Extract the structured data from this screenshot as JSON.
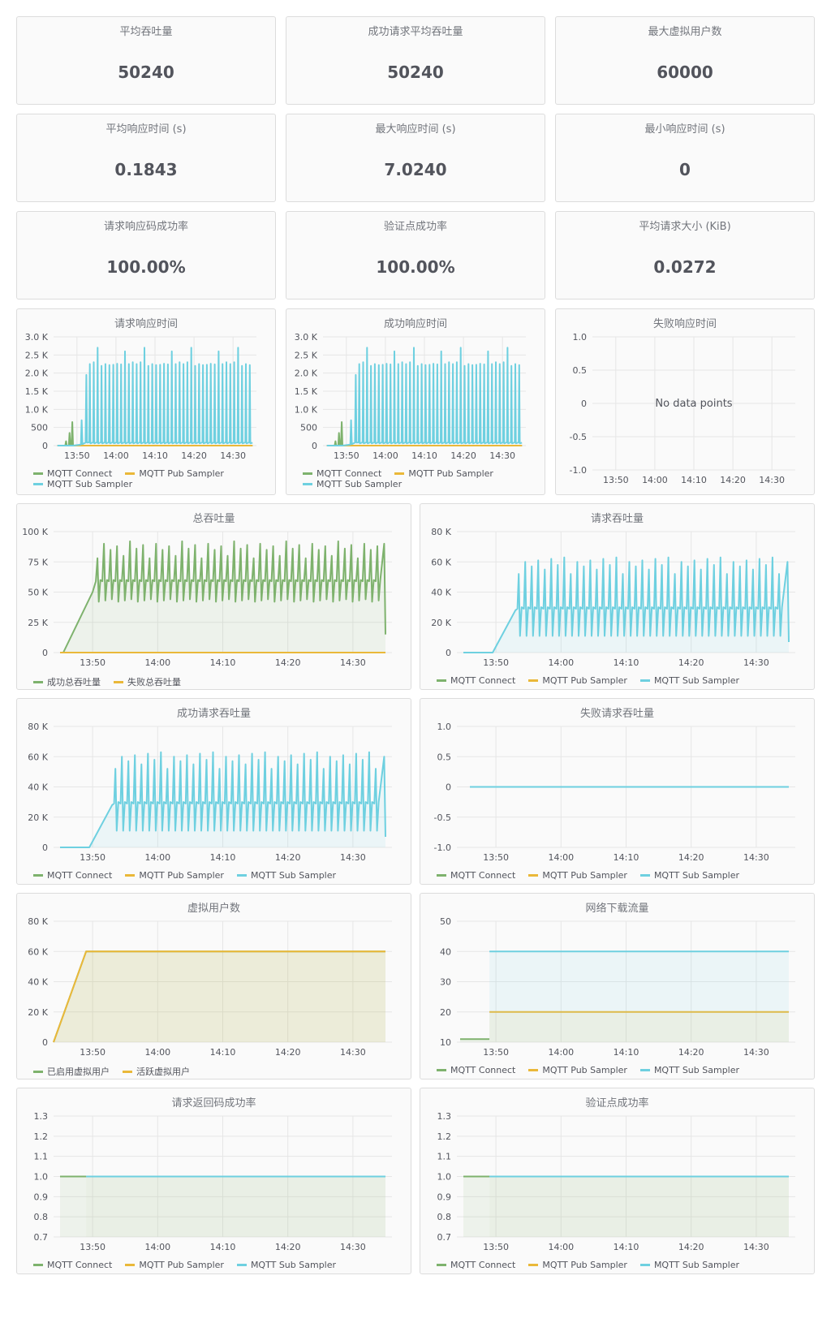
{
  "stats": [
    {
      "title": "平均吞吐量",
      "value": "50240"
    },
    {
      "title": "成功请求平均吞吐量",
      "value": "50240"
    },
    {
      "title": "最大虚拟用户数",
      "value": "60000"
    },
    {
      "title": "平均响应时间 (s)",
      "value": "0.1843"
    },
    {
      "title": "最大响应时间 (s)",
      "value": "7.0240"
    },
    {
      "title": "最小响应时间 (s)",
      "value": "0"
    },
    {
      "title": "请求响应码成功率",
      "value": "100.00%"
    },
    {
      "title": "验证点成功率",
      "value": "100.00%"
    },
    {
      "title": "平均请求大小 (KiB)",
      "value": "0.0272"
    }
  ],
  "colors": {
    "green": "#7eb26d",
    "yellow": "#eab839",
    "cyan": "#6ed0e0"
  },
  "no_data_text": "No data points",
  "chart_data": [
    {
      "id": "resp",
      "type": "line",
      "title": "请求响应时间",
      "y_ticks": [
        "3.0 K",
        "2.5 K",
        "2.0 K",
        "1.5 K",
        "1.0 K",
        "500",
        "0"
      ],
      "ylim": [
        0,
        3000
      ],
      "x_ticks": [
        "13:50",
        "14:00",
        "14:10",
        "14:20",
        "14:30"
      ],
      "series": [
        {
          "name": "MQTT Connect",
          "color": "#7eb26d",
          "shape": "connect_spikes"
        },
        {
          "name": "MQTT Pub Sampler",
          "color": "#eab839",
          "shape": "flat_zero"
        },
        {
          "name": "MQTT Sub Sampler",
          "color": "#6ed0e0",
          "shape": "spikes_2200"
        }
      ]
    },
    {
      "id": "success_resp",
      "type": "line",
      "title": "成功响应时间",
      "y_ticks": [
        "3.0 K",
        "2.5 K",
        "2.0 K",
        "1.5 K",
        "1.0 K",
        "500",
        "0"
      ],
      "ylim": [
        0,
        3000
      ],
      "x_ticks": [
        "13:50",
        "14:00",
        "14:10",
        "14:20",
        "14:30"
      ],
      "series": [
        {
          "name": "MQTT Connect",
          "color": "#7eb26d",
          "shape": "connect_spikes"
        },
        {
          "name": "MQTT Pub Sampler",
          "color": "#eab839",
          "shape": "flat_zero"
        },
        {
          "name": "MQTT Sub Sampler",
          "color": "#6ed0e0",
          "shape": "spikes_2200"
        }
      ]
    },
    {
      "id": "fail_resp",
      "type": "line",
      "title": "失败响应时间",
      "y_ticks": [
        "1.0",
        "0.5",
        "0",
        "-0.5",
        "-1.0"
      ],
      "ylim": [
        -1,
        1
      ],
      "x_ticks": [
        "13:50",
        "14:00",
        "14:10",
        "14:20",
        "14:30"
      ],
      "no_data": true,
      "series": []
    },
    {
      "id": "total_tp",
      "type": "area",
      "title": "总吞吐量",
      "y_ticks": [
        "100 K",
        "75 K",
        "50 K",
        "25 K",
        "0"
      ],
      "ylim": [
        0,
        100000
      ],
      "x_ticks": [
        "13:50",
        "14:00",
        "14:10",
        "14:20",
        "14:30"
      ],
      "series": [
        {
          "name": "成功总吞吐量",
          "color": "#7eb26d",
          "shape": "tp_60k"
        },
        {
          "name": "失败总吞吐量",
          "color": "#eab839",
          "shape": "flat_zero"
        }
      ]
    },
    {
      "id": "req_tp",
      "type": "area",
      "title": "请求吞吐量",
      "y_ticks": [
        "80 K",
        "60 K",
        "40 K",
        "20 K",
        "0"
      ],
      "ylim": [
        0,
        80000
      ],
      "x_ticks": [
        "13:50",
        "14:00",
        "14:10",
        "14:20",
        "14:30"
      ],
      "series": [
        {
          "name": "MQTT Connect",
          "color": "#7eb26d",
          "shape": "flat_zero_short"
        },
        {
          "name": "MQTT Pub Sampler",
          "color": "#eab839",
          "shape": "flat_zero_short"
        },
        {
          "name": "MQTT Sub Sampler",
          "color": "#6ed0e0",
          "shape": "tp_30k"
        }
      ]
    },
    {
      "id": "success_req_tp",
      "type": "area",
      "title": "成功请求吞吐量",
      "y_ticks": [
        "80 K",
        "60 K",
        "40 K",
        "20 K",
        "0"
      ],
      "ylim": [
        0,
        80000
      ],
      "x_ticks": [
        "13:50",
        "14:00",
        "14:10",
        "14:20",
        "14:30"
      ],
      "series": [
        {
          "name": "MQTT Connect",
          "color": "#7eb26d",
          "shape": "flat_zero_short"
        },
        {
          "name": "MQTT Pub Sampler",
          "color": "#eab839",
          "shape": "flat_zero_short"
        },
        {
          "name": "MQTT Sub Sampler",
          "color": "#6ed0e0",
          "shape": "tp_30k"
        }
      ]
    },
    {
      "id": "fail_req_tp",
      "type": "line",
      "title": "失败请求吞吐量",
      "y_ticks": [
        "1.0",
        "0.5",
        "0",
        "-0.5",
        "-1.0"
      ],
      "ylim": [
        -1,
        1
      ],
      "x_ticks": [
        "13:50",
        "14:00",
        "14:10",
        "14:20",
        "14:30"
      ],
      "series": [
        {
          "name": "MQTT Connect",
          "color": "#7eb26d",
          "shape": "zero_line_short"
        },
        {
          "name": "MQTT Pub Sampler",
          "color": "#eab839",
          "shape": "zero_line"
        },
        {
          "name": "MQTT Sub Sampler",
          "color": "#6ed0e0",
          "shape": "zero_line"
        }
      ]
    },
    {
      "id": "vusers",
      "type": "area",
      "title": "虚拟用户数",
      "y_ticks": [
        "80 K",
        "60 K",
        "40 K",
        "20 K",
        "0"
      ],
      "ylim": [
        0,
        80000
      ],
      "x_ticks": [
        "13:50",
        "14:00",
        "14:10",
        "14:20",
        "14:30"
      ],
      "series": [
        {
          "name": "已启用虚拟用户",
          "color": "#7eb26d",
          "shape": "ramp_60k"
        },
        {
          "name": "活跃虚拟用户",
          "color": "#eab839",
          "shape": "ramp_60k"
        }
      ]
    },
    {
      "id": "net_down",
      "type": "area",
      "title": "网络下载流量",
      "y_ticks": [
        "50",
        "40",
        "30",
        "20",
        "10"
      ],
      "ylim": [
        10,
        50
      ],
      "x_ticks": [
        "13:50",
        "14:00",
        "14:10",
        "14:20",
        "14:30"
      ],
      "series": [
        {
          "name": "MQTT Connect",
          "color": "#7eb26d",
          "shape": "net_11"
        },
        {
          "name": "MQTT Pub Sampler",
          "color": "#eab839",
          "shape": "net_20"
        },
        {
          "name": "MQTT Sub Sampler",
          "color": "#6ed0e0",
          "shape": "net_40"
        }
      ]
    },
    {
      "id": "code_rate",
      "type": "area",
      "title": "请求返回码成功率",
      "y_ticks": [
        "1.3",
        "1.2",
        "1.1",
        "1.0",
        "0.9",
        "0.8",
        "0.7"
      ],
      "ylim": [
        0.7,
        1.3
      ],
      "x_ticks": [
        "13:50",
        "14:00",
        "14:10",
        "14:20",
        "14:30"
      ],
      "series": [
        {
          "name": "MQTT Connect",
          "color": "#7eb26d",
          "shape": "one_short"
        },
        {
          "name": "MQTT Pub Sampler",
          "color": "#eab839",
          "shape": "one"
        },
        {
          "name": "MQTT Sub Sampler",
          "color": "#6ed0e0",
          "shape": "one"
        }
      ]
    },
    {
      "id": "check_rate",
      "type": "area",
      "title": "验证点成功率",
      "y_ticks": [
        "1.3",
        "1.2",
        "1.1",
        "1.0",
        "0.9",
        "0.8",
        "0.7"
      ],
      "ylim": [
        0.7,
        1.3
      ],
      "x_ticks": [
        "13:50",
        "14:00",
        "14:10",
        "14:20",
        "14:30"
      ],
      "series": [
        {
          "name": "MQTT Connect",
          "color": "#7eb26d",
          "shape": "one_short"
        },
        {
          "name": "MQTT Pub Sampler",
          "color": "#eab839",
          "shape": "one"
        },
        {
          "name": "MQTT Sub Sampler",
          "color": "#6ed0e0",
          "shape": "one"
        }
      ]
    }
  ]
}
